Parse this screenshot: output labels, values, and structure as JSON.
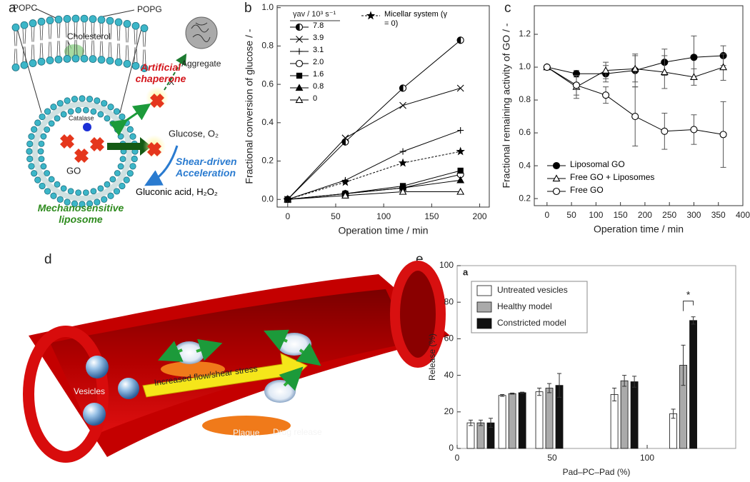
{
  "panel_labels": [
    "a",
    "b",
    "c",
    "d",
    "e"
  ],
  "diagram": {
    "lipids": [
      "POPC",
      "POPG"
    ],
    "cholesterol": "Cholesterol",
    "chaperone": "Artificial chaperone",
    "aggregate": "Aggregate",
    "blocked": "X",
    "catalase": "Catalase",
    "enzyme": "GO",
    "substrates": "Glucose, O₂",
    "acceleration": "Shear-driven Acceleration",
    "liposome": "Mechanosensitive liposome",
    "products": "Gluconic acid, H₂O₂"
  },
  "illustration": {
    "vesicles": "Vesicles",
    "flow": "Increased flow/shear stress",
    "plaque": "Plaque",
    "release": "Drug release"
  },
  "chart_data": [
    {
      "type": "line",
      "xlabel": "Operation time / min",
      "ylabel": "Fractional conversion of glucose / -",
      "legend_title": "γav / 10³ s⁻¹",
      "legend": "upper left",
      "x": [
        0,
        60,
        120,
        180
      ],
      "xlim": [
        -11,
        210
      ],
      "xticks": [
        0,
        50,
        100,
        150,
        200
      ],
      "ylim": [
        -0.04,
        1.01
      ],
      "yticks": [
        {
          "value": 0,
          "label": "0.0"
        },
        0.2,
        0.4,
        0.6,
        0.8,
        {
          "value": 1,
          "label": "1.0"
        }
      ],
      "series": [
        {
          "name": "7.8",
          "color": "#000000",
          "marker": "circle-half",
          "values": [
            0,
            0.3,
            0.58,
            0.83
          ]
        },
        {
          "name": "3.9",
          "color": "#000000",
          "marker": "x",
          "values": [
            0,
            0.32,
            0.49,
            0.58
          ]
        },
        {
          "name": "3.1",
          "color": "#000000",
          "marker": "plus",
          "values": [
            0,
            0.1,
            0.25,
            0.36
          ]
        },
        {
          "name": "2.0",
          "color": "#000000",
          "marker": "circle-open",
          "values": [
            0,
            0.03,
            0.06,
            0.13
          ]
        },
        {
          "name": "1.6",
          "color": "#000000",
          "marker": "square",
          "values": [
            0,
            0.03,
            0.07,
            0.15
          ]
        },
        {
          "name": "0.8",
          "color": "#000000",
          "marker": "triangle",
          "values": [
            0,
            0.03,
            0.06,
            0.1
          ]
        },
        {
          "name": "0",
          "color": "#000000",
          "marker": "triangle-open",
          "values": [
            0,
            0.02,
            0.04,
            0.04
          ]
        },
        {
          "name": "Micellar system (γ = 0)",
          "color": "#000000",
          "marker": "star",
          "linestyle": "dotted",
          "values": [
            0,
            0.09,
            0.19,
            0.25
          ]
        }
      ]
    },
    {
      "type": "line",
      "xlabel": "Operation time / min",
      "ylabel": "Fractional remaining activity of GO / -",
      "legend": "lower left",
      "x": [
        0,
        60,
        120,
        180,
        240,
        300,
        360
      ],
      "xlim": [
        -26,
        400
      ],
      "xticks": [
        0,
        50,
        100,
        150,
        200,
        250,
        300,
        350,
        400
      ],
      "ylim": [
        0.157,
        1.374
      ],
      "yticks": [
        0.2,
        0.4,
        0.6,
        0.8,
        {
          "value": 1,
          "label": "1.0"
        },
        1.2
      ],
      "series": [
        {
          "name": "Liposomal GO",
          "color": "#000000",
          "marker": "circle-filled",
          "values": [
            1.0,
            0.96,
            0.96,
            0.98,
            1.03,
            1.06,
            1.07
          ],
          "errors": [
            0,
            0.02,
            0.05,
            0.1,
            0.08,
            0.13,
            0.06
          ]
        },
        {
          "name": "Free GO + Liposomes",
          "color": "#000000",
          "marker": "triangle-open",
          "values": [
            1.0,
            0.88,
            0.98,
            0.99,
            0.97,
            0.94,
            1.0
          ],
          "errors": [
            0,
            0.07,
            0.05,
            0.08,
            0.1,
            0.05,
            0.08
          ]
        },
        {
          "name": "Free GO",
          "color": "#000000",
          "marker": "circle-open",
          "values": [
            1.0,
            0.89,
            0.83,
            0.7,
            0.61,
            0.62,
            0.59
          ],
          "errors": [
            0,
            0.06,
            0.05,
            0.18,
            0.11,
            0.09,
            0.2
          ]
        }
      ]
    },
    {
      "type": "bar",
      "panel_label": "a",
      "xlabel": "Pad–PC–Pad (%)",
      "ylabel": "Release (%)",
      "legend": "upper left",
      "annotation": "*",
      "x": [
        12.4,
        29,
        48.5,
        88,
        119
      ],
      "xlim": [
        0,
        146.6
      ],
      "xticks": [
        0,
        50,
        100
      ],
      "ylim": [
        0,
        100
      ],
      "yticks": [
        0,
        20,
        40,
        60,
        80,
        100
      ],
      "series": [
        {
          "name": "Untreated vesicles",
          "color": "#ffffff",
          "values": [
            14,
            29,
            31,
            29.5,
            19
          ],
          "errors": [
            1.5,
            0.5,
            2,
            3.5,
            2.5
          ]
        },
        {
          "name": "Healthy model",
          "color": "#aaaaaa",
          "values": [
            14,
            30,
            33,
            37,
            45.5
          ],
          "errors": [
            1.5,
            0.3,
            2.5,
            3,
            11
          ]
        },
        {
          "name": "Constricted model",
          "color": "#111111",
          "values": [
            14,
            30.5,
            34.5,
            36.5,
            70
          ],
          "errors": [
            2.5,
            0.3,
            6.5,
            3,
            2
          ]
        }
      ]
    }
  ]
}
